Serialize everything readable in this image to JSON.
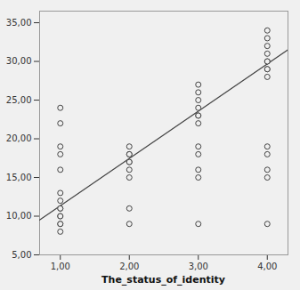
{
  "chart_data": {
    "type": "scatter",
    "xlabel": "The_status_of_identity",
    "x": [
      1,
      1,
      1,
      1,
      1,
      1,
      1,
      1,
      1,
      1,
      1,
      1,
      1,
      1,
      2,
      2,
      2,
      2,
      2,
      2,
      2,
      2,
      2,
      3,
      3,
      3,
      3,
      3,
      3,
      3,
      3,
      3,
      3,
      3,
      3,
      4,
      4,
      4,
      4,
      4,
      4,
      4,
      4,
      4,
      4,
      4,
      4,
      4,
      4
    ],
    "values": [
      24,
      22,
      19,
      18,
      16,
      13,
      12,
      11,
      11,
      10,
      10,
      9,
      9,
      8,
      19,
      18,
      18,
      17,
      17,
      16,
      15,
      11,
      9,
      27,
      26,
      25,
      24,
      23,
      23,
      22,
      19,
      18,
      16,
      15,
      9,
      34,
      33,
      32,
      31,
      30,
      30,
      29,
      29,
      28,
      19,
      18,
      16,
      15,
      9
    ],
    "regression_line": {
      "x": [
        0.7,
        4.3
      ],
      "values": [
        9.5,
        31.5
      ]
    },
    "color": "#444444",
    "xlim": [
      0.7,
      4.3
    ],
    "ylim": [
      5.0,
      36.5
    ],
    "xticks": [
      {
        "value": 1.0,
        "label": "1,00"
      },
      {
        "value": 2.0,
        "label": "2,00"
      },
      {
        "value": 3.0,
        "label": "3,00"
      },
      {
        "value": 4.0,
        "label": "4,00"
      }
    ],
    "yticks": [
      {
        "value": 5.0,
        "label": "5,00"
      },
      {
        "value": 10.0,
        "label": "10,00"
      },
      {
        "value": 15.0,
        "label": "15,00"
      },
      {
        "value": 20.0,
        "label": "20,00"
      },
      {
        "value": 25.0,
        "label": "25,00"
      },
      {
        "value": 30.0,
        "label": "30,00"
      },
      {
        "value": 35.0,
        "label": "35,00"
      }
    ],
    "grid": false
  }
}
